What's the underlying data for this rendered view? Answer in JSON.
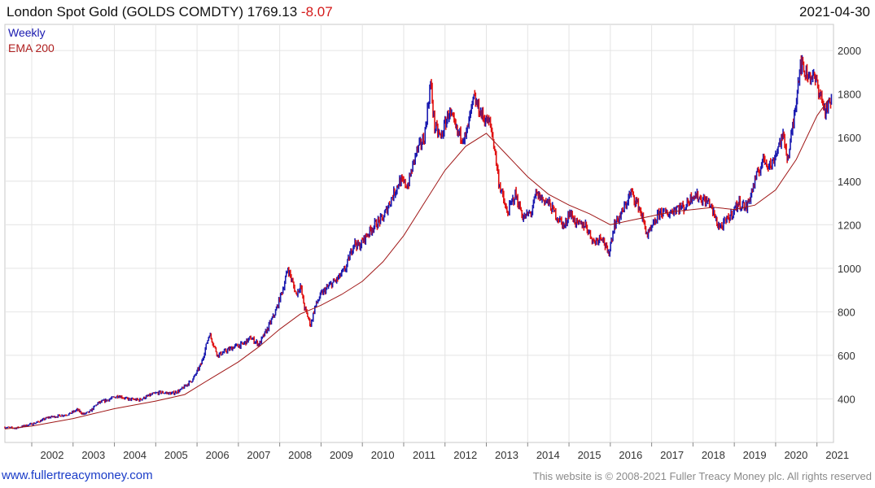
{
  "header": {
    "title": "London Spot Gold (GOLDS COMDTY) 1769.13",
    "change": "-8.07",
    "date": "2021-04-30"
  },
  "footer": {
    "left": "www.fullertreacymoney.com",
    "right": "This website is © 2008-2021 Fuller Treacy Money plc. All rights reserved"
  },
  "colors": {
    "price_up": "#1a1ab0",
    "price_down": "#e01010",
    "ema": "#a01818",
    "grid": "#e4e4e4"
  },
  "chart_data": {
    "type": "line",
    "legend": [
      "Weekly",
      "EMA 200"
    ],
    "legend_position": "top-left",
    "x_ticks": [
      "2002",
      "2003",
      "2004",
      "2005",
      "2006",
      "2007",
      "2008",
      "2009",
      "2010",
      "2011",
      "2012",
      "2013",
      "2014",
      "2015",
      "2016",
      "2017",
      "2018",
      "2019",
      "2020",
      "2021"
    ],
    "y_ticks": [
      400,
      600,
      800,
      1000,
      1200,
      1400,
      1600,
      1800,
      2000
    ],
    "ylim": [
      200,
      2120
    ],
    "xlim": [
      2001.35,
      2021.4
    ],
    "grid": true,
    "series": [
      {
        "name": "Weekly",
        "x": [
          2001.35,
          2001.6,
          2001.9,
          2002.1,
          2002.4,
          2002.6,
          2002.9,
          2003.1,
          2003.25,
          2003.4,
          2003.6,
          2003.9,
          2004.1,
          2004.3,
          2004.6,
          2004.9,
          2005.1,
          2005.4,
          2005.6,
          2005.9,
          2006.1,
          2006.3,
          2006.4,
          2006.5,
          2006.7,
          2006.9,
          2007.1,
          2007.3,
          2007.5,
          2007.7,
          2007.9,
          2008.1,
          2008.2,
          2008.4,
          2008.5,
          2008.6,
          2008.75,
          2008.85,
          2009.0,
          2009.2,
          2009.4,
          2009.6,
          2009.8,
          2009.92,
          2010.1,
          2010.3,
          2010.5,
          2010.7,
          2010.9,
          2011.1,
          2011.3,
          2011.5,
          2011.65,
          2011.75,
          2011.9,
          2012.1,
          2012.3,
          2012.5,
          2012.7,
          2012.9,
          2013.1,
          2013.2,
          2013.3,
          2013.5,
          2013.7,
          2013.9,
          2014.1,
          2014.2,
          2014.5,
          2014.7,
          2014.9,
          2015.0,
          2015.2,
          2015.4,
          2015.6,
          2015.8,
          2015.95,
          2016.1,
          2016.3,
          2016.5,
          2016.7,
          2016.9,
          2017.0,
          2017.2,
          2017.4,
          2017.6,
          2017.8,
          2018.0,
          2018.2,
          2018.4,
          2018.6,
          2018.7,
          2018.9,
          2019.1,
          2019.3,
          2019.5,
          2019.7,
          2019.9,
          2020.1,
          2020.2,
          2020.3,
          2020.45,
          2020.6,
          2020.7,
          2020.9,
          2021.0,
          2021.2,
          2021.35
        ],
        "y": [
          270,
          265,
          280,
          290,
          315,
          320,
          330,
          350,
          330,
          340,
          380,
          400,
          415,
          400,
          395,
          420,
          430,
          425,
          440,
          490,
          560,
          700,
          650,
          600,
          620,
          640,
          650,
          680,
          650,
          720,
          800,
          920,
          1000,
          880,
          920,
          820,
          740,
          820,
          880,
          920,
          950,
          1000,
          1120,
          1100,
          1150,
          1200,
          1230,
          1320,
          1400,
          1380,
          1530,
          1600,
          1850,
          1650,
          1600,
          1720,
          1620,
          1600,
          1780,
          1700,
          1660,
          1550,
          1400,
          1250,
          1340,
          1230,
          1260,
          1340,
          1300,
          1240,
          1190,
          1260,
          1200,
          1200,
          1120,
          1150,
          1060,
          1200,
          1260,
          1350,
          1280,
          1150,
          1180,
          1260,
          1250,
          1280,
          1280,
          1340,
          1320,
          1300,
          1200,
          1190,
          1240,
          1300,
          1280,
          1400,
          1500,
          1470,
          1580,
          1600,
          1500,
          1700,
          1950,
          1900,
          1880,
          1850,
          1720,
          1769
        ]
      },
      {
        "name": "EMA 200",
        "x": [
          2001.35,
          2002.0,
          2003.0,
          2004.0,
          2005.0,
          2005.7,
          2006.3,
          2007.0,
          2007.5,
          2008.0,
          2008.5,
          2009.0,
          2009.5,
          2010.0,
          2010.5,
          2011.0,
          2011.5,
          2012.0,
          2012.5,
          2013.0,
          2013.5,
          2014.0,
          2014.5,
          2015.0,
          2015.5,
          2016.0,
          2016.5,
          2017.0,
          2017.5,
          2018.0,
          2018.5,
          2019.0,
          2019.5,
          2020.0,
          2020.5,
          2021.0,
          2021.3
        ],
        "y": [
          262,
          275,
          310,
          355,
          390,
          420,
          490,
          570,
          640,
          720,
          790,
          830,
          880,
          940,
          1030,
          1150,
          1300,
          1450,
          1560,
          1620,
          1520,
          1420,
          1340,
          1290,
          1250,
          1200,
          1220,
          1240,
          1260,
          1270,
          1280,
          1270,
          1290,
          1360,
          1500,
          1700,
          1780
        ]
      }
    ]
  }
}
